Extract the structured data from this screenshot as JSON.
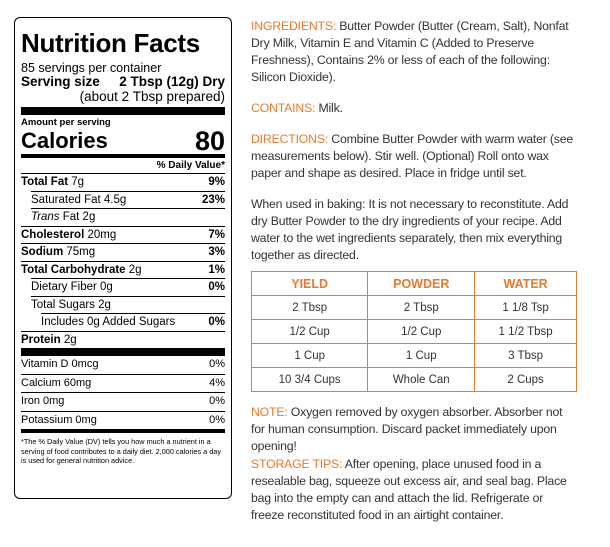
{
  "nutrition": {
    "title": "Nutrition Facts",
    "servings": "85 servings per container",
    "serving_size_label": "Serving size",
    "serving_size_value": "2 Tbsp (12g) Dry",
    "serving_size_prepared": "(about 2 Tbsp prepared)",
    "amount_per_serving": "Amount per serving",
    "calories_label": "Calories",
    "calories_value": "80",
    "daily_value_header": "% Daily Value*",
    "rows": [
      {
        "label": "Total Fat",
        "amount": "7g",
        "pct": "9%"
      },
      {
        "label": "Saturated Fat 4.5g",
        "pct": "23%"
      },
      {
        "label": "Trans Fat 2g"
      },
      {
        "label": "Cholesterol",
        "amount": "20mg",
        "pct": "7%"
      },
      {
        "label": "Sodium",
        "amount": "75mg",
        "pct": "3%"
      },
      {
        "label": "Total Carbohydrate",
        "amount": "2g",
        "pct": "1%"
      },
      {
        "label": "Dietary Fiber 0g",
        "pct": "0%"
      },
      {
        "label": "Total Sugars 2g"
      },
      {
        "label": "Includes 0g Added Sugars",
        "pct": "0%"
      },
      {
        "label": "Protein",
        "amount": "2g"
      }
    ],
    "vitamins": [
      {
        "label": "Vitamin D 0mcg",
        "pct": "0%"
      },
      {
        "label": "Calcium 60mg",
        "pct": "4%"
      },
      {
        "label": "Iron 0mg",
        "pct": "0%"
      },
      {
        "label": "Potassium 0mg",
        "pct": "0%"
      }
    ],
    "footnote": "*The % Daily Value (DV) tells you how much a nutrient in a serving of food contributes to a daily diet. 2,000 calories a day is used for general nutrition advice."
  },
  "ingredients": {
    "label": "INGREDIENTS:",
    "text": " Butter Powder (Butter (Cream, Salt), Nonfat Dry Milk, Vitamin E and Vitamin C (Added to Preserve Freshness), Contains 2% or less of each of the following: Silicon Dioxide)."
  },
  "contains": {
    "label": "CONTAINS:",
    "text": " Milk."
  },
  "directions": {
    "label": "DIRECTIONS:",
    "text": " Combine Butter Powder with warm water (see measurements below). Stir well. (Optional) Roll onto wax paper and shape as desired. Place in fridge until set."
  },
  "baking": "When used in baking: It is not necessary to reconstitute. Add dry Butter Powder to the dry ingredients of your recipe. Add water to the wet ingredients separately, then mix everything together as directed.",
  "table": {
    "headers": [
      "YIELD",
      "POWDER",
      "WATER"
    ],
    "rows": [
      [
        "2 Tbsp",
        "2 Tbsp",
        "1 1/8 Tsp"
      ],
      [
        "1/2 Cup",
        "1/2 Cup",
        "1 1/2 Tbsp"
      ],
      [
        "1 Cup",
        "1 Cup",
        "3 Tbsp"
      ],
      [
        "10 3/4 Cups",
        "Whole Can",
        "2 Cups"
      ]
    ]
  },
  "note": {
    "label": "NOTE:",
    "text": " Oxygen removed by oxygen absorber. Absorber not for human consumption. Discard packet immediately upon opening!"
  },
  "storage": {
    "label": "STORAGE TIPS:",
    "text": " After opening, place unused food in a resealable bag, squeeze out excess air, and seal bag. Place bag into the empty can and attach the lid. Refrigerate or freeze reconstituted food in an airtight container."
  },
  "colors": {
    "accent": "#e87a2c",
    "text": "#333333"
  }
}
